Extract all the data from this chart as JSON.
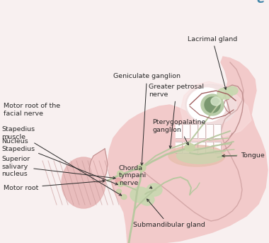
{
  "background_color": "#f8f0f0",
  "labels": {
    "motor_root": "Motor root",
    "superior_salivary": "Superior\nsalivary\nnucleus",
    "nucleus_stapedius": "Nucleus\nStapedius",
    "stapedius_muscle": "Stapedius\nmuscle",
    "motor_root_facial": "Motor root of the\nfacial nerve",
    "geniculate_ganglion": "Geniculate ganglion",
    "greater_petrosal": "Greater petrosal\nnerve",
    "pterygopalatine": "Pterygopalatine\nganglion",
    "chorda_tympani": "Chorda\ntympani\nnerve",
    "lacrimal_gland": "Lacrimal gland",
    "tongue": "Tongue",
    "submandibular_gland": "Submandibular gland"
  },
  "watermark": "e",
  "face_color": "#f2caca",
  "face_light": "#f9e0e0",
  "face_shadow": "#e8a8a8",
  "nerve_color": "#b8c8a0",
  "nerve_dark": "#8aa870",
  "ganglion_color": "#c8d4a8",
  "gland_color": "#c8d8b0",
  "skull_color": "#e8b8b8",
  "text_color": "#2a2a2a",
  "fontsize": 6.8
}
